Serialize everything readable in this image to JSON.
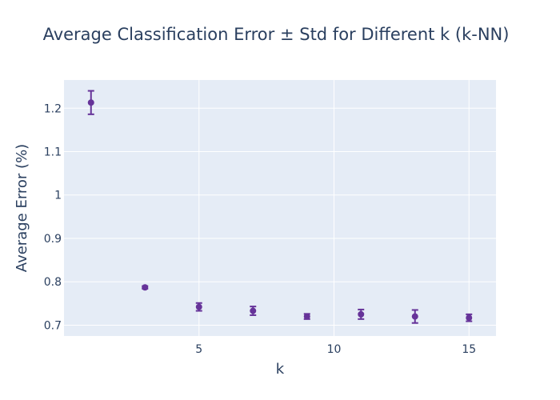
{
  "chart_data": {
    "type": "scatter",
    "title": "Average Classification Error ± Std for Different k (k-NN)",
    "xlabel": "k",
    "ylabel": "Average Error (%)",
    "xlim": [
      0,
      16
    ],
    "ylim": [
      0.675,
      1.265
    ],
    "xticks": [
      5,
      10,
      15
    ],
    "yticks": [
      0.7,
      0.8,
      0.9,
      1,
      1.1,
      1.2
    ],
    "ytick_labels": [
      "0.7",
      "0.8",
      "0.9",
      "1",
      "1.1",
      "1.2"
    ],
    "grid": true,
    "legend": "none",
    "colors": {
      "marker": "#663399",
      "plot_bg": "#E5ECF6",
      "text": "#2a3f5f"
    },
    "series": [
      {
        "x": [
          1,
          3,
          5,
          7,
          9,
          11,
          13,
          15
        ],
        "y": [
          1.213,
          0.787,
          0.742,
          0.733,
          0.72,
          0.725,
          0.72,
          0.717
        ],
        "error": [
          0.027,
          0.003,
          0.009,
          0.01,
          0.006,
          0.011,
          0.015,
          0.008
        ]
      }
    ]
  }
}
